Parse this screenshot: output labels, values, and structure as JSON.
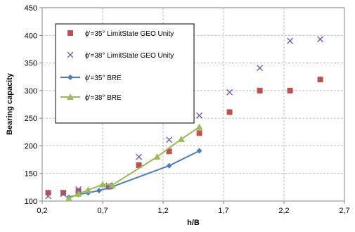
{
  "chart_data": {
    "type": "scatter",
    "xlabel": "h/B",
    "ylabel": "Bearing capacity",
    "xlim": [
      0.2,
      2.7
    ],
    "ylim": [
      100,
      450
    ],
    "x_ticks": [
      "0,2",
      "0,7",
      "1,2",
      "1,7",
      "2,2",
      "2,7"
    ],
    "y_ticks": [
      "100",
      "150",
      "200",
      "250",
      "300",
      "350",
      "400",
      "450"
    ],
    "grid": "dashed-vertical-and-horizontal",
    "legend_position": "top-left inside",
    "series": [
      {
        "name": "ϕ'=35° LimitState GEO Unity",
        "style": "markers",
        "marker": "square",
        "color": "#c0504d",
        "x": [
          0.25,
          0.375,
          0.5,
          0.75,
          1.0,
          1.25,
          1.5,
          1.75,
          2.0,
          2.25,
          2.5
        ],
        "y": [
          115,
          115,
          118,
          126,
          165,
          190,
          223,
          261,
          300,
          300,
          320
        ]
      },
      {
        "name": "ϕ'=38° LimitState GEO Unity",
        "style": "markers",
        "marker": "x",
        "color": "#7b5ea7",
        "x": [
          0.25,
          0.375,
          0.5,
          0.75,
          1.0,
          1.25,
          1.5,
          1.75,
          2.0,
          2.25,
          2.5
        ],
        "y": [
          109,
          113,
          121,
          128,
          180,
          211,
          255,
          297,
          341,
          390,
          393
        ]
      },
      {
        "name": "ϕ'=35° BRE",
        "style": "line",
        "marker": "diamond",
        "color": "#4a7ebb",
        "x": [
          0.42,
          0.5,
          0.58,
          0.67,
          0.78,
          1.25,
          1.5
        ],
        "y": [
          107,
          112,
          115,
          119,
          126,
          164,
          191
        ]
      },
      {
        "name": "ϕ'=38° BRE",
        "style": "line",
        "marker": "triangle",
        "color": "#9bbb59",
        "x": [
          0.42,
          0.5,
          0.58,
          0.7,
          0.78,
          1.15,
          1.35,
          1.5
        ],
        "y": [
          105,
          113,
          120,
          130,
          129,
          180,
          212,
          234
        ]
      }
    ]
  }
}
